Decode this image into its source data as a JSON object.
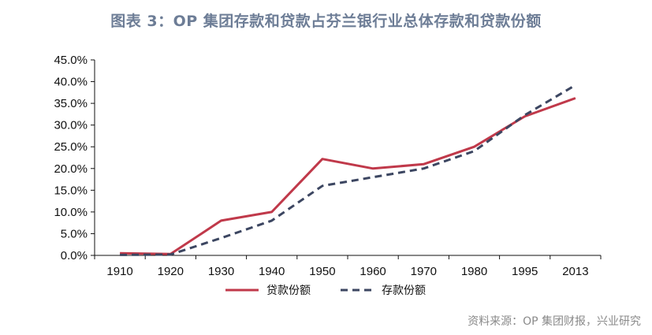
{
  "title": "图表 3：OP 集团存款和贷款占芬兰银行业总体存款和贷款份额",
  "source": "资料来源：OP 集团财报，兴业研究",
  "colors": {
    "loan": "#c0394a",
    "deposit": "#3c4661"
  },
  "chart_data": {
    "type": "line",
    "categories": [
      "1910",
      "1920",
      "1930",
      "1940",
      "1950",
      "1960",
      "1970",
      "1980",
      "1995",
      "2013"
    ],
    "series": [
      {
        "name": "贷款份额",
        "values": [
          0.5,
          0.3,
          8.0,
          10.0,
          22.2,
          20.0,
          21.0,
          25.0,
          32.0,
          36.2
        ]
      },
      {
        "name": "存款份额",
        "values": [
          0.1,
          0.2,
          4.0,
          8.0,
          16.0,
          18.0,
          20.0,
          24.0,
          32.3,
          39.2
        ]
      }
    ],
    "yticks": [
      "0.0%",
      "5.0%",
      "10.0%",
      "15.0%",
      "20.0%",
      "25.0%",
      "30.0%",
      "35.0%",
      "40.0%",
      "45.0%"
    ],
    "ylim": [
      0,
      45
    ],
    "legend": "bottom",
    "grid": false
  }
}
